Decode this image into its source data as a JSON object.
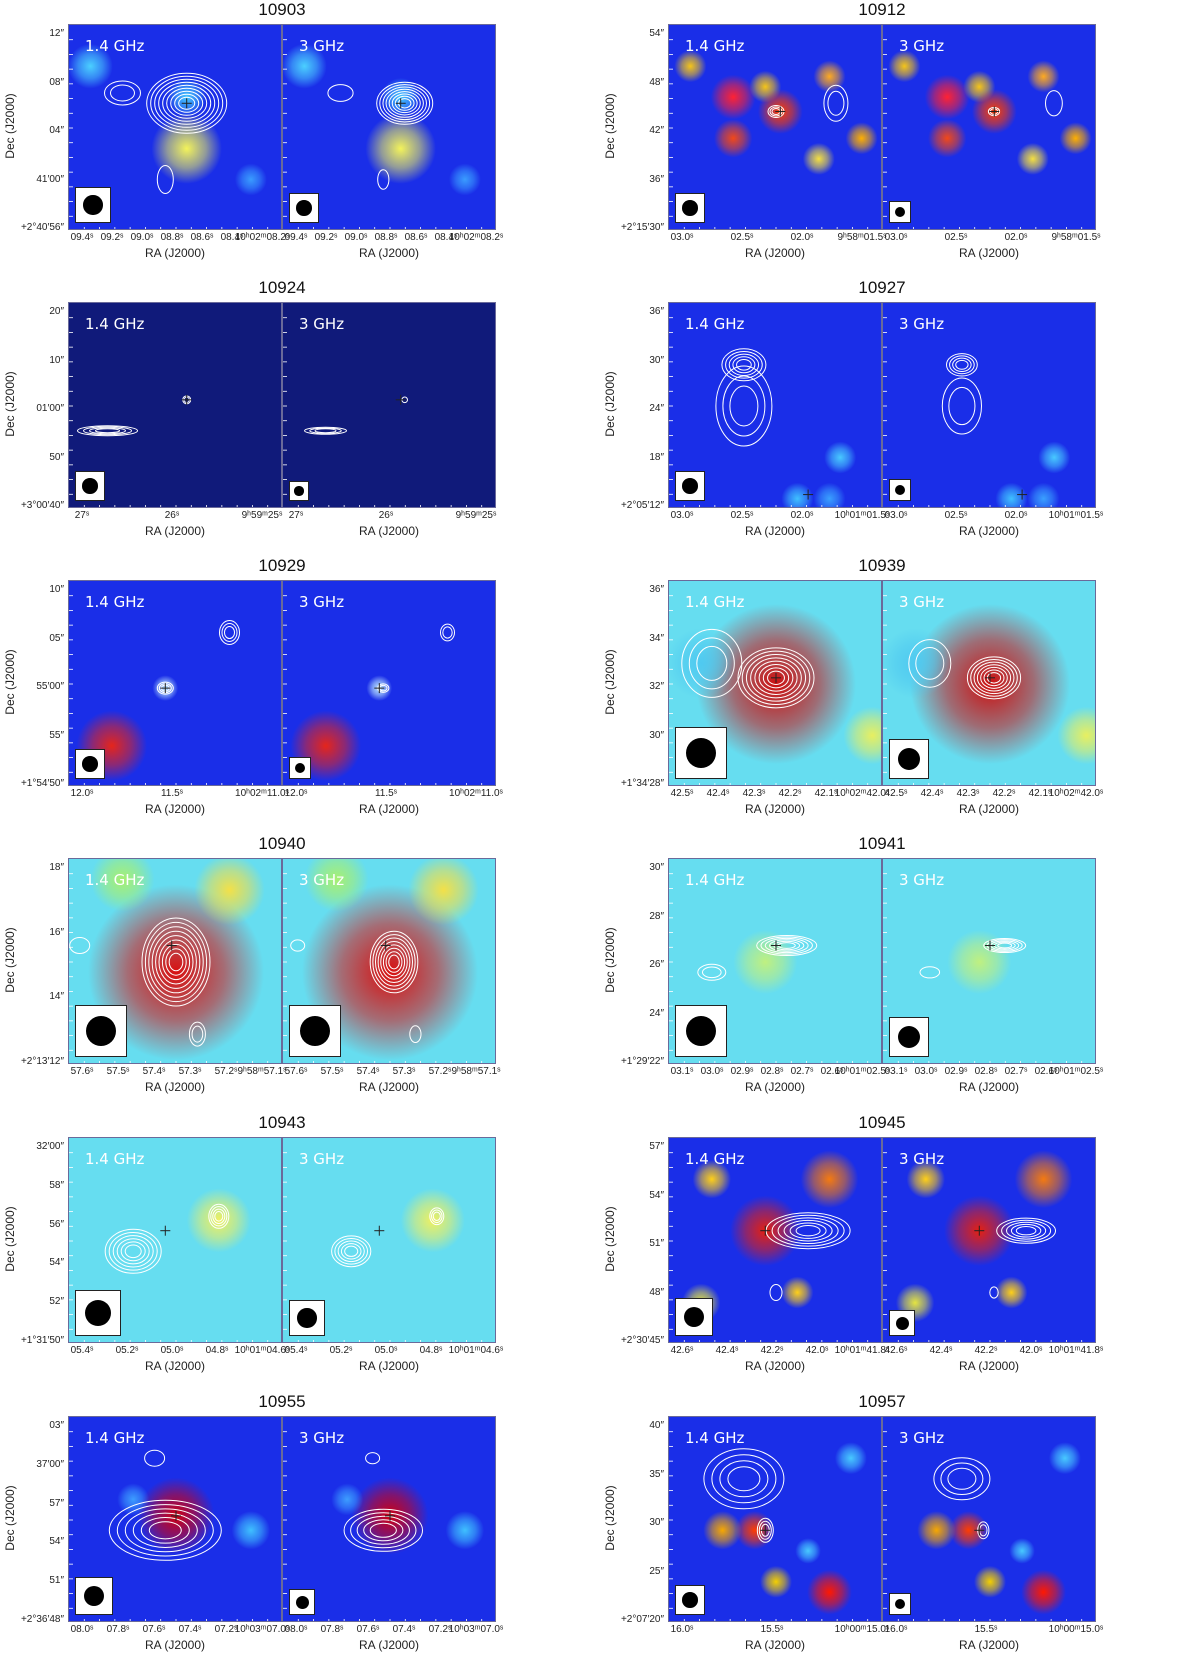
{
  "figure": {
    "panel_freqs": [
      "1.4 GHz",
      "3 GHz"
    ],
    "axis": {
      "ra_label": "RA (J2000)",
      "dec_label": "Dec (J2000)"
    },
    "colors": {
      "bg_blue": "#1a2ee8",
      "bg_dark": "#101a7a",
      "bg_cyan": "#66ddf0",
      "contour": "#ffffff"
    },
    "sources": [
      {
        "id": "10903",
        "style": "blue",
        "dec_ticks": [
          "12″",
          "08″",
          "04″",
          "41′00″",
          "+2°40′56″"
        ],
        "ra_ticks": [
          "09.4ˢ",
          "09.2ˢ",
          "09.0ˢ",
          "08.8ˢ",
          "08.6ˢ",
          "08.4ˢ",
          "10ʰ02ᵐ08.2ˢ"
        ]
      },
      {
        "id": "10912",
        "style": "blue",
        "dec_ticks": [
          "54″",
          "48″",
          "42″",
          "36″",
          "+2°15′30″"
        ],
        "ra_ticks": [
          "03.0ˢ",
          "02.5ˢ",
          "02.0ˢ",
          "9ʰ58ᵐ01.5ˢ"
        ]
      },
      {
        "id": "10924",
        "style": "dark",
        "dec_ticks": [
          "20″",
          "10″",
          "01′00″",
          "50″",
          "+3°00′40″"
        ],
        "ra_ticks": [
          "27ˢ",
          "26ˢ",
          "9ʰ59ᵐ25ˢ"
        ]
      },
      {
        "id": "10927",
        "style": "blue",
        "dec_ticks": [
          "36″",
          "30″",
          "24″",
          "18″",
          "+2°05′12″"
        ],
        "ra_ticks": [
          "03.0ˢ",
          "02.5ˢ",
          "02.0ˢ",
          "10ʰ01ᵐ01.5ˢ"
        ]
      },
      {
        "id": "10929",
        "style": "blue",
        "dec_ticks": [
          "10″",
          "05″",
          "55′00″",
          "55″",
          "+1°54′50″"
        ],
        "ra_ticks": [
          "12.0ˢ",
          "11.5ˢ",
          "10ʰ02ᵐ11.0ˢ"
        ]
      },
      {
        "id": "10939",
        "style": "cyan",
        "dec_ticks": [
          "36″",
          "34″",
          "32″",
          "30″",
          "+1°34′28″"
        ],
        "ra_ticks": [
          "42.5ˢ",
          "42.4ˢ",
          "42.3ˢ",
          "42.2ˢ",
          "42.1ˢ",
          "10ʰ02ᵐ42.0ˢ"
        ]
      },
      {
        "id": "10940",
        "style": "cyan",
        "dec_ticks": [
          "18″",
          "16″",
          "14″",
          "+2°13′12″"
        ],
        "ra_ticks": [
          "57.6ˢ",
          "57.5ˢ",
          "57.4ˢ",
          "57.3ˢ",
          "57.2ˢ",
          "9ʰ58ᵐ57.1ˢ"
        ]
      },
      {
        "id": "10941",
        "style": "cyan",
        "dec_ticks": [
          "30″",
          "28″",
          "26″",
          "24″",
          "+1°29′22″"
        ],
        "ra_ticks": [
          "03.1ˢ",
          "03.0ˢ",
          "02.9ˢ",
          "02.8ˢ",
          "02.7ˢ",
          "02.6ˢ",
          "10ʰ01ᵐ02.5ˢ"
        ]
      },
      {
        "id": "10943",
        "style": "cyan",
        "dec_ticks": [
          "32′00″",
          "58″",
          "56″",
          "54″",
          "52″",
          "+1°31′50″"
        ],
        "ra_ticks": [
          "05.4ˢ",
          "05.2ˢ",
          "05.0ˢ",
          "04.8ˢ",
          "10ʰ01ᵐ04.6ˢ"
        ]
      },
      {
        "id": "10945",
        "style": "blue",
        "dec_ticks": [
          "57″",
          "54″",
          "51″",
          "48″",
          "+2°30′45″"
        ],
        "ra_ticks": [
          "42.6ˢ",
          "42.4ˢ",
          "42.2ˢ",
          "42.0ˢ",
          "10ʰ01ᵐ41.8ˢ"
        ]
      },
      {
        "id": "10955",
        "style": "blue",
        "dec_ticks": [
          "03″",
          "37′00″",
          "57″",
          "54″",
          "51″",
          "+2°36′48″"
        ],
        "ra_ticks": [
          "08.0ˢ",
          "07.8ˢ",
          "07.6ˢ",
          "07.4ˢ",
          "07.2ˢ",
          "10ʰ03ᵐ07.0ˢ"
        ]
      },
      {
        "id": "10957",
        "style": "blue",
        "dec_ticks": [
          "40″",
          "35″",
          "30″",
          "25″",
          "+2°07′20″"
        ],
        "ra_ticks": [
          "16.0ˢ",
          "15.5ˢ",
          "10ʰ00ᵐ15.0ˢ"
        ]
      }
    ]
  }
}
